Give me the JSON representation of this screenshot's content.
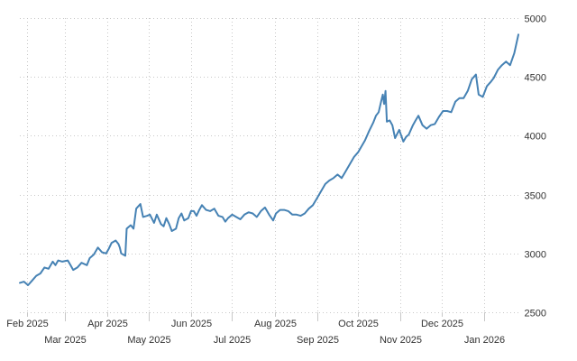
{
  "chart_data": {
    "type": "line",
    "title": "",
    "xlabel": "",
    "ylabel": "",
    "ylim": [
      2500,
      5000
    ],
    "xlim": [
      "2025-01-27",
      "2026-01-28"
    ],
    "y_ticks": [
      2500,
      3000,
      3500,
      4000,
      4500,
      5000
    ],
    "y_axis_side": "right",
    "x_ticks": [
      {
        "label": "Feb 2025",
        "date": "2025-02-01",
        "row": 1
      },
      {
        "label": "Mar 2025",
        "date": "2025-03-01",
        "row": 2
      },
      {
        "label": "Apr 2025",
        "date": "2025-04-01",
        "row": 1
      },
      {
        "label": "May 2025",
        "date": "2025-05-01",
        "row": 2
      },
      {
        "label": "Jun 2025",
        "date": "2025-06-01",
        "row": 1
      },
      {
        "label": "Jul 2025",
        "date": "2025-07-01",
        "row": 2
      },
      {
        "label": "Aug 2025",
        "date": "2025-08-01",
        "row": 1
      },
      {
        "label": "Sep 2025",
        "date": "2025-09-01",
        "row": 2
      },
      {
        "label": "Oct 2025",
        "date": "2025-10-01",
        "row": 1
      },
      {
        "label": "Nov 2025",
        "date": "2025-11-01",
        "row": 2
      },
      {
        "label": "Dec 2025",
        "date": "2025-12-01",
        "row": 1
      },
      {
        "label": "Jan 2026",
        "date": "2026-01-01",
        "row": 2
      }
    ],
    "grid": true,
    "legend": "none",
    "series": [
      {
        "color": "#4682b4",
        "points": [
          [
            "2025-01-27",
            2750
          ],
          [
            "2025-01-30",
            2760
          ],
          [
            "2025-02-02",
            2730
          ],
          [
            "2025-02-05",
            2770
          ],
          [
            "2025-02-08",
            2810
          ],
          [
            "2025-02-11",
            2830
          ],
          [
            "2025-02-14",
            2880
          ],
          [
            "2025-02-17",
            2870
          ],
          [
            "2025-02-20",
            2930
          ],
          [
            "2025-02-22",
            2900
          ],
          [
            "2025-02-24",
            2940
          ],
          [
            "2025-02-27",
            2930
          ],
          [
            "2025-03-03",
            2940
          ],
          [
            "2025-03-05",
            2900
          ],
          [
            "2025-03-07",
            2860
          ],
          [
            "2025-03-10",
            2880
          ],
          [
            "2025-03-13",
            2920
          ],
          [
            "2025-03-17",
            2900
          ],
          [
            "2025-03-19",
            2960
          ],
          [
            "2025-03-22",
            2990
          ],
          [
            "2025-03-25",
            3050
          ],
          [
            "2025-03-28",
            3010
          ],
          [
            "2025-03-31",
            3000
          ],
          [
            "2025-04-02",
            3040
          ],
          [
            "2025-04-04",
            3090
          ],
          [
            "2025-04-07",
            3110
          ],
          [
            "2025-04-09",
            3080
          ],
          [
            "2025-04-10",
            3050
          ],
          [
            "2025-04-11",
            3000
          ],
          [
            "2025-04-14",
            2980
          ],
          [
            "2025-04-15",
            3210
          ],
          [
            "2025-04-18",
            3240
          ],
          [
            "2025-04-20",
            3210
          ],
          [
            "2025-04-22",
            3380
          ],
          [
            "2025-04-25",
            3420
          ],
          [
            "2025-04-27",
            3310
          ],
          [
            "2025-04-30",
            3320
          ],
          [
            "2025-05-02",
            3330
          ],
          [
            "2025-05-05",
            3260
          ],
          [
            "2025-05-07",
            3330
          ],
          [
            "2025-05-10",
            3250
          ],
          [
            "2025-05-12",
            3230
          ],
          [
            "2025-05-14",
            3300
          ],
          [
            "2025-05-16",
            3250
          ],
          [
            "2025-05-18",
            3190
          ],
          [
            "2025-05-21",
            3210
          ],
          [
            "2025-05-23",
            3300
          ],
          [
            "2025-05-25",
            3340
          ],
          [
            "2025-05-27",
            3280
          ],
          [
            "2025-05-30",
            3300
          ],
          [
            "2025-06-01",
            3360
          ],
          [
            "2025-06-03",
            3360
          ],
          [
            "2025-06-05",
            3320
          ],
          [
            "2025-06-07",
            3370
          ],
          [
            "2025-06-09",
            3410
          ],
          [
            "2025-06-12",
            3370
          ],
          [
            "2025-06-15",
            3360
          ],
          [
            "2025-06-18",
            3380
          ],
          [
            "2025-06-21",
            3320
          ],
          [
            "2025-06-24",
            3310
          ],
          [
            "2025-06-26",
            3270
          ],
          [
            "2025-06-28",
            3300
          ],
          [
            "2025-07-01",
            3330
          ],
          [
            "2025-07-04",
            3310
          ],
          [
            "2025-07-07",
            3290
          ],
          [
            "2025-07-10",
            3330
          ],
          [
            "2025-07-13",
            3350
          ],
          [
            "2025-07-16",
            3340
          ],
          [
            "2025-07-19",
            3310
          ],
          [
            "2025-07-22",
            3360
          ],
          [
            "2025-07-25",
            3390
          ],
          [
            "2025-07-28",
            3330
          ],
          [
            "2025-07-31",
            3280
          ],
          [
            "2025-08-02",
            3340
          ],
          [
            "2025-08-05",
            3370
          ],
          [
            "2025-08-08",
            3370
          ],
          [
            "2025-08-11",
            3360
          ],
          [
            "2025-08-14",
            3330
          ],
          [
            "2025-08-17",
            3330
          ],
          [
            "2025-08-20",
            3320
          ],
          [
            "2025-08-23",
            3340
          ],
          [
            "2025-08-26",
            3380
          ],
          [
            "2025-08-29",
            3410
          ],
          [
            "2025-09-01",
            3470
          ],
          [
            "2025-09-04",
            3530
          ],
          [
            "2025-09-07",
            3590
          ],
          [
            "2025-09-10",
            3620
          ],
          [
            "2025-09-13",
            3640
          ],
          [
            "2025-09-16",
            3670
          ],
          [
            "2025-09-19",
            3640
          ],
          [
            "2025-09-22",
            3700
          ],
          [
            "2025-09-25",
            3760
          ],
          [
            "2025-09-28",
            3820
          ],
          [
            "2025-10-01",
            3860
          ],
          [
            "2025-10-03",
            3900
          ],
          [
            "2025-10-06",
            3960
          ],
          [
            "2025-10-09",
            4040
          ],
          [
            "2025-10-12",
            4110
          ],
          [
            "2025-10-14",
            4170
          ],
          [
            "2025-10-16",
            4200
          ],
          [
            "2025-10-18",
            4300
          ],
          [
            "2025-10-19",
            4350
          ],
          [
            "2025-10-20",
            4270
          ],
          [
            "2025-10-21",
            4380
          ],
          [
            "2025-10-22",
            4120
          ],
          [
            "2025-10-24",
            4130
          ],
          [
            "2025-10-26",
            4090
          ],
          [
            "2025-10-28",
            3980
          ],
          [
            "2025-10-31",
            4050
          ],
          [
            "2025-11-03",
            3950
          ],
          [
            "2025-11-05",
            3990
          ],
          [
            "2025-11-07",
            4010
          ],
          [
            "2025-11-10",
            4090
          ],
          [
            "2025-11-12",
            4130
          ],
          [
            "2025-11-14",
            4170
          ],
          [
            "2025-11-17",
            4090
          ],
          [
            "2025-11-20",
            4060
          ],
          [
            "2025-11-23",
            4090
          ],
          [
            "2025-11-26",
            4100
          ],
          [
            "2025-11-29",
            4160
          ],
          [
            "2025-12-02",
            4210
          ],
          [
            "2025-12-05",
            4210
          ],
          [
            "2025-12-08",
            4200
          ],
          [
            "2025-12-11",
            4290
          ],
          [
            "2025-12-14",
            4320
          ],
          [
            "2025-12-17",
            4320
          ],
          [
            "2025-12-20",
            4380
          ],
          [
            "2025-12-23",
            4480
          ],
          [
            "2025-12-26",
            4520
          ],
          [
            "2025-12-28",
            4350
          ],
          [
            "2025-12-31",
            4330
          ],
          [
            "2026-01-03",
            4420
          ],
          [
            "2026-01-06",
            4460
          ],
          [
            "2026-01-08",
            4490
          ],
          [
            "2026-01-11",
            4560
          ],
          [
            "2026-01-14",
            4600
          ],
          [
            "2026-01-17",
            4630
          ],
          [
            "2026-01-20",
            4600
          ],
          [
            "2026-01-23",
            4700
          ],
          [
            "2026-01-26",
            4860
          ]
        ]
      }
    ]
  }
}
